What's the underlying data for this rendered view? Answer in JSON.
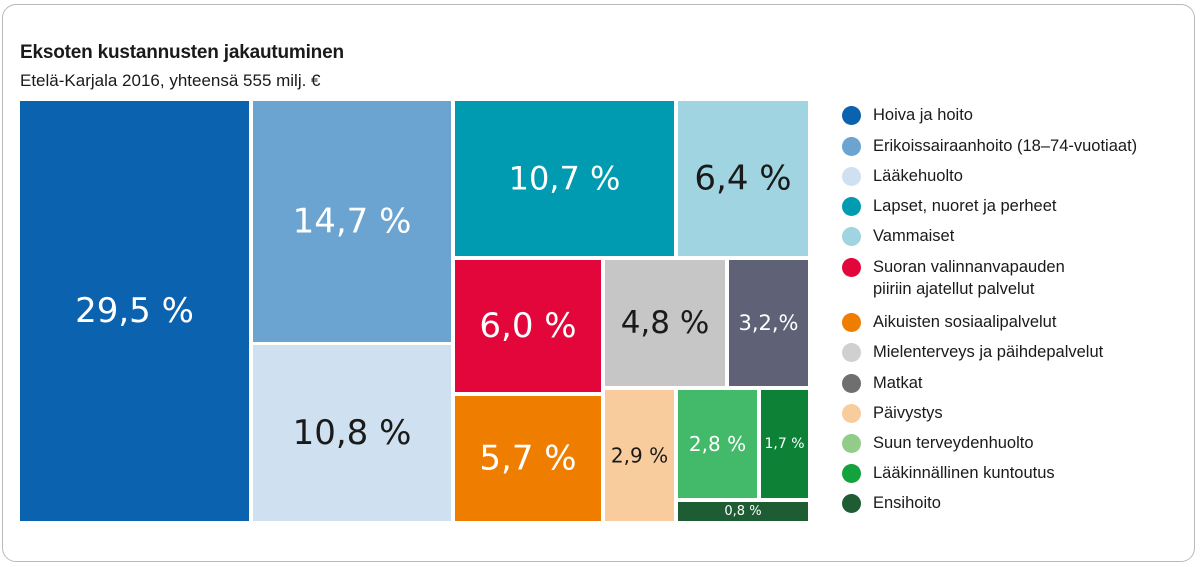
{
  "chart_data": {
    "type": "treemap",
    "title": "Eksoten kustannusten jakautuminen",
    "subtitle": "Etelä-Karjala 2016, yhteensä 555 milj. €",
    "unit": "%",
    "series": [
      {
        "name": "Hoiva ja hoito",
        "value": 29.5,
        "label": "29,5 %",
        "color": "#0b62ae"
      },
      {
        "name": "Erikoissairaanhoito (18–74-vuotiaat)",
        "value": 14.7,
        "label": "14,7 %",
        "color": "#6ba4d1"
      },
      {
        "name": "Lääkehuolto",
        "value": 10.8,
        "label": "10,8 %",
        "color": "#cfe1f0"
      },
      {
        "name": "Lapset, nuoret ja perheet",
        "value": 10.7,
        "label": "10,7 %",
        "color": "#009bb1"
      },
      {
        "name": "Vammaiset",
        "value": 6.4,
        "label": "6,4 %",
        "color": "#9fd4e0"
      },
      {
        "name": "Suoran valinnanvapauden piiriin ajatellut palvelut",
        "value": 6.0,
        "label": "6,0 %",
        "color": "#e2063a"
      },
      {
        "name": "Aikuisten sosiaalipalvelut",
        "value": 5.7,
        "label": "5,7 %",
        "color": "#ef7d00"
      },
      {
        "name": "Mielenterveys ja päihdepalvelut",
        "value": 4.8,
        "label": "4,8 %",
        "color": "#c6c6c6"
      },
      {
        "name": "Matkat",
        "value": 3.2,
        "label": "3,2,%",
        "color": "#5f6177"
      },
      {
        "name": "Päivystys",
        "value": 2.9,
        "label": "2,9 %",
        "color": "#f9cc9e"
      },
      {
        "name": "Suun terveydenhuolto",
        "value": 2.8,
        "label": "2,8 %",
        "color": "#43b96a"
      },
      {
        "name": "Lääkinnällinen kuntoutus",
        "value": 1.7,
        "label": "1,7 %",
        "color": "#0d8237"
      },
      {
        "name": "Ensihoito",
        "value": 0.8,
        "label": "0,8 %",
        "color": "#1e5c34"
      }
    ],
    "legend": [
      {
        "lines": [
          "Hoiva ja hoito"
        ],
        "color": "#0b62ae"
      },
      {
        "lines": [
          "Erikoissairaanhoito (18–74-vuotiaat)"
        ],
        "color": "#6ba4d1"
      },
      {
        "lines": [
          "Lääkehuolto"
        ],
        "color": "#cfe1f0"
      },
      {
        "lines": [
          "Lapset, nuoret ja perheet"
        ],
        "color": "#009bb1"
      },
      {
        "lines": [
          "Vammaiset"
        ],
        "color": "#9fd4e0"
      },
      {
        "lines": [
          "Suoran valinnanvapauden",
          "piiriin ajatellut palvelut"
        ],
        "color": "#e2063a"
      },
      {
        "lines": [
          "Aikuisten sosiaalipalvelut"
        ],
        "color": "#ef7d00"
      },
      {
        "lines": [
          "Mielenterveys ja päihdepalvelut"
        ],
        "color": "#d0d0d0"
      },
      {
        "lines": [
          "Matkat"
        ],
        "color": "#6f6f6f"
      },
      {
        "lines": [
          "Päivystys"
        ],
        "color": "#f9cc9e"
      },
      {
        "lines": [
          "Suun terveydenhuolto"
        ],
        "color": "#93cc8a"
      },
      {
        "lines": [
          "Lääkinnällinen kuntoutus"
        ],
        "color": "#14a23c"
      },
      {
        "lines": [
          "Ensihoito"
        ],
        "color": "#1e5c34"
      }
    ],
    "legend_position": "right"
  }
}
